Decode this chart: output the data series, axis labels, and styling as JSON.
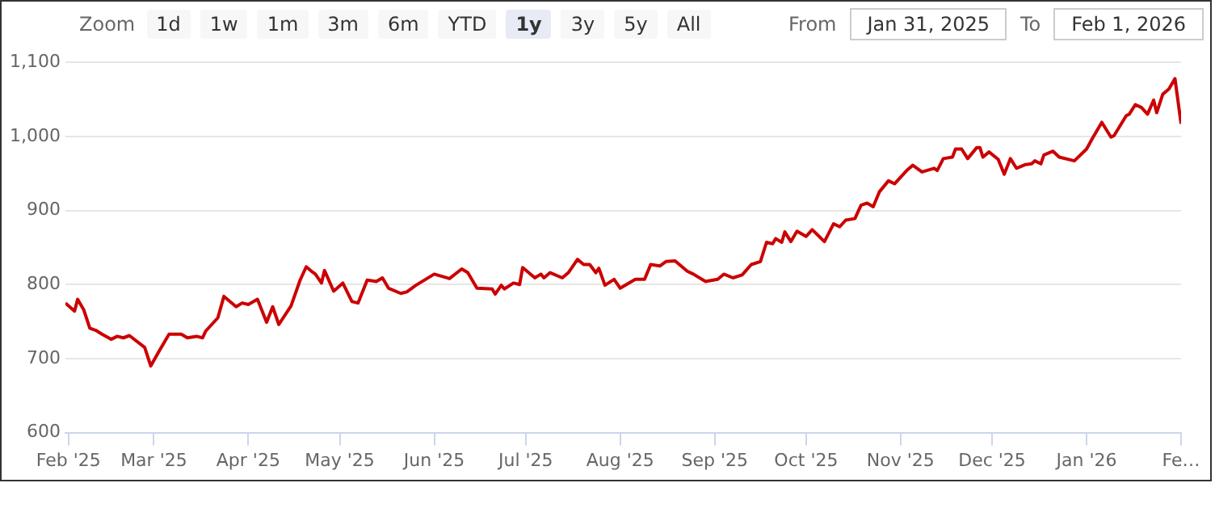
{
  "chart_data": {
    "type": "line",
    "x": [
      "2025-01-31",
      "2025-02-03",
      "2025-02-04",
      "2025-02-06",
      "2025-02-08",
      "2025-02-10",
      "2025-02-12",
      "2025-02-15",
      "2025-02-17",
      "2025-02-19",
      "2025-02-21",
      "2025-02-26",
      "2025-02-28",
      "2025-03-03",
      "2025-03-06",
      "2025-03-10",
      "2025-03-12",
      "2025-03-15",
      "2025-03-17",
      "2025-03-18",
      "2025-03-22",
      "2025-03-24",
      "2025-03-28",
      "2025-03-30",
      "2025-04-01",
      "2025-04-04",
      "2025-04-07",
      "2025-04-09",
      "2025-04-11",
      "2025-04-15",
      "2025-04-18",
      "2025-04-20",
      "2025-04-22",
      "2025-04-23",
      "2025-04-25",
      "2025-04-26",
      "2025-04-29",
      "2025-05-02",
      "2025-05-05",
      "2025-05-07",
      "2025-05-10",
      "2025-05-13",
      "2025-05-15",
      "2025-05-17",
      "2025-05-21",
      "2025-05-23",
      "2025-05-25",
      "2025-05-26",
      "2025-06-01",
      "2025-06-06",
      "2025-06-10",
      "2025-06-12",
      "2025-06-15",
      "2025-06-20",
      "2025-06-21",
      "2025-06-23",
      "2025-06-24",
      "2025-06-27",
      "2025-06-29",
      "2025-06-30",
      "2025-07-04",
      "2025-07-06",
      "2025-07-07",
      "2025-07-09",
      "2025-07-13",
      "2025-07-15",
      "2025-07-18",
      "2025-07-20",
      "2025-07-22",
      "2025-07-24",
      "2025-07-25",
      "2025-07-27",
      "2025-07-30",
      "2025-08-01",
      "2025-08-06",
      "2025-08-09",
      "2025-08-11",
      "2025-08-14",
      "2025-08-16",
      "2025-08-19",
      "2025-08-23",
      "2025-08-25",
      "2025-08-29",
      "2025-09-02",
      "2025-09-04",
      "2025-09-07",
      "2025-09-10",
      "2025-09-13",
      "2025-09-16",
      "2025-09-18",
      "2025-09-20",
      "2025-09-21",
      "2025-09-23",
      "2025-09-24",
      "2025-09-26",
      "2025-09-28",
      "2025-10-01",
      "2025-10-03",
      "2025-10-07",
      "2025-10-10",
      "2025-10-12",
      "2025-10-14",
      "2025-10-17",
      "2025-10-19",
      "2025-10-21",
      "2025-10-23",
      "2025-10-25",
      "2025-10-28",
      "2025-10-30",
      "2025-11-03",
      "2025-11-05",
      "2025-11-08",
      "2025-11-12",
      "2025-11-13",
      "2025-11-15",
      "2025-11-18",
      "2025-11-19",
      "2025-11-21",
      "2025-11-23",
      "2025-11-26",
      "2025-11-27",
      "2025-11-28",
      "2025-11-30",
      "2025-12-03",
      "2025-12-05",
      "2025-12-07",
      "2025-12-09",
      "2025-12-12",
      "2025-12-14",
      "2025-12-15",
      "2025-12-17",
      "2025-12-18",
      "2025-12-21",
      "2025-12-23",
      "2025-12-28",
      "2026-01-01",
      "2026-01-03",
      "2026-01-06",
      "2026-01-09",
      "2026-01-10",
      "2026-01-14",
      "2026-01-15",
      "2026-01-17",
      "2026-01-19",
      "2026-01-21",
      "2026-01-23",
      "2026-01-24",
      "2026-01-26",
      "2026-01-28",
      "2026-01-30",
      "2026-02-01"
    ],
    "series": [
      {
        "color": "#cc0000",
        "values": [
          775,
          764,
          780,
          766,
          741,
          738,
          733,
          726,
          730,
          728,
          731,
          715,
          690,
          712,
          733,
          733,
          728,
          730,
          728,
          737,
          755,
          784,
          770,
          775,
          773,
          780,
          749,
          770,
          746,
          771,
          806,
          824,
          817,
          814,
          802,
          819,
          791,
          802,
          777,
          775,
          806,
          804,
          809,
          795,
          788,
          790,
          796,
          799,
          814,
          808,
          821,
          816,
          795,
          794,
          787,
          799,
          794,
          802,
          800,
          823,
          809,
          814,
          809,
          816,
          809,
          816,
          834,
          827,
          827,
          816,
          822,
          799,
          807,
          795,
          807,
          807,
          827,
          825,
          831,
          832,
          818,
          814,
          804,
          807,
          814,
          809,
          813,
          827,
          831,
          857,
          855,
          862,
          857,
          871,
          858,
          872,
          865,
          874,
          858,
          882,
          878,
          887,
          889,
          907,
          910,
          905,
          925,
          940,
          936,
          954,
          961,
          952,
          957,
          954,
          970,
          972,
          983,
          983,
          970,
          985,
          985,
          972,
          979,
          969,
          949,
          970,
          957,
          962,
          963,
          967,
          963,
          975,
          980,
          972,
          967,
          983,
          998,
          1019,
          999,
          1001,
          1028,
          1030,
          1043,
          1039,
          1030,
          1049,
          1032,
          1057,
          1064,
          1078,
          1017
        ]
      }
    ],
    "xlim": [
      "2025-01-31",
      "2026-02-01"
    ],
    "xticks": [
      {
        "value": "2025-02-01",
        "label": "Feb '25"
      },
      {
        "value": "2025-03-01",
        "label": "Mar '25"
      },
      {
        "value": "2025-04-01",
        "label": "Apr '25"
      },
      {
        "value": "2025-05-01",
        "label": "May '25"
      },
      {
        "value": "2025-06-01",
        "label": "Jun '25"
      },
      {
        "value": "2025-07-01",
        "label": "Jul '25"
      },
      {
        "value": "2025-08-01",
        "label": "Aug '25"
      },
      {
        "value": "2025-09-01",
        "label": "Sep '25"
      },
      {
        "value": "2025-10-01",
        "label": "Oct '25"
      },
      {
        "value": "2025-11-01",
        "label": "Nov '25"
      },
      {
        "value": "2025-12-01",
        "label": "Dec '25"
      },
      {
        "value": "2026-01-01",
        "label": "Jan '26"
      },
      {
        "value": "2026-02-01",
        "label": "Fe…"
      }
    ],
    "ylim": [
      600,
      1100
    ],
    "yticks": [
      600,
      700,
      800,
      900,
      {
        "value": 1000,
        "label": "1,000"
      },
      {
        "value": 1100,
        "label": "1,100"
      }
    ],
    "grid": "y",
    "legend": false,
    "marker": "none",
    "line_style": "solid",
    "annotations": [
      "Zoom",
      "1d",
      "1w",
      "1m",
      "3m",
      "6m",
      "YTD",
      "1y",
      "3y",
      "5y",
      "All",
      "From",
      "Jan 31, 2025",
      "To",
      "Feb 1, 2026"
    ]
  }
}
